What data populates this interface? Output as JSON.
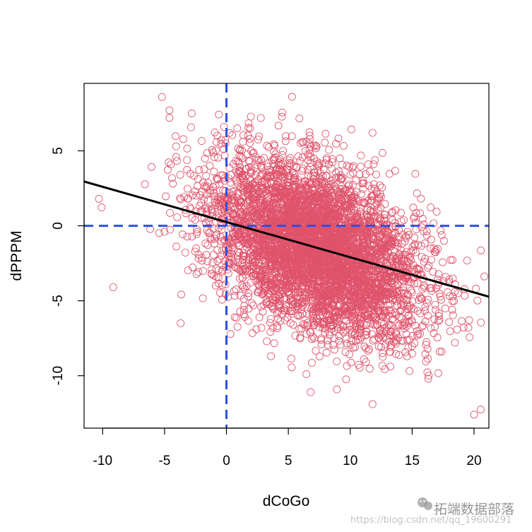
{
  "chart_data": {
    "type": "scatter",
    "title": "",
    "xlabel": "dCoGo",
    "ylabel": "dPPPM",
    "xlim": [
      -11.5,
      21.2
    ],
    "ylim": [
      -13.5,
      9.5
    ],
    "x_ticks": [
      -10,
      -5,
      0,
      5,
      10,
      15,
      20
    ],
    "x_tick_labels": [
      "-10",
      "-5",
      "0",
      "5",
      "10",
      "15",
      "20"
    ],
    "y_ticks": [
      -10,
      -5,
      0,
      5
    ],
    "y_tick_labels": [
      "-10",
      "-5",
      "0",
      "5"
    ],
    "grid": false,
    "legend": "none",
    "point_color": "#DF536B",
    "point_count": 5000,
    "point_distribution": {
      "x_mean": 7.3,
      "x_sd": 4.2,
      "y_mean": -1.5,
      "y_sd": 2.9,
      "correlation": -0.42
    },
    "notable_points": [
      {
        "x": -10.3,
        "y": 1.8
      },
      {
        "x": -4.6,
        "y": 7.7
      },
      {
        "x": -4.6,
        "y": 7.2
      },
      {
        "x": -2.8,
        "y": 7.5
      },
      {
        "x": 5.3,
        "y": 8.6
      },
      {
        "x": -3.7,
        "y": -6.5
      },
      {
        "x": 6.8,
        "y": -11.1
      },
      {
        "x": 11.8,
        "y": -11.9
      },
      {
        "x": 16.3,
        "y": -10.2
      },
      {
        "x": 20.0,
        "y": -12.6
      },
      {
        "x": 19.6,
        "y": -6.3
      },
      {
        "x": 18.7,
        "y": -4.5
      },
      {
        "x": 11.8,
        "y": 6.2
      },
      {
        "x": -0.2,
        "y": 6.6
      },
      {
        "x": 3.6,
        "y": -8.7
      },
      {
        "x": 14.6,
        "y": -8.7
      }
    ],
    "regression_line": {
      "intercept": 0.25,
      "slope": -0.235,
      "color": "#000000"
    },
    "reference_lines": [
      {
        "orientation": "vertical",
        "value": 0,
        "style": "dashed",
        "color": "#2E4FE0"
      },
      {
        "orientation": "horizontal",
        "value": 0,
        "style": "dashed",
        "color": "#2E4FE0"
      }
    ]
  },
  "watermark": {
    "icon": "wechat-icon",
    "text": "拓端数据部落",
    "url": "https://blog.csdn.net/qq_19600291"
  }
}
